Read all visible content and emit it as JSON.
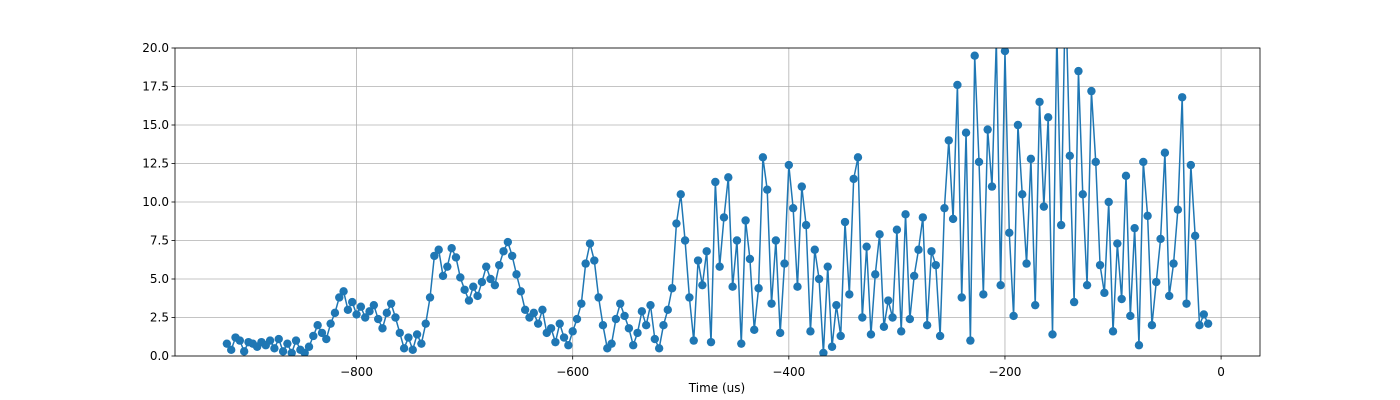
{
  "chart_data": {
    "type": "line",
    "xlabel": "Time (us)",
    "color": "#1f77b4",
    "grid": true,
    "xlim": [
      -968,
      36
    ],
    "ylim": [
      0,
      20
    ],
    "xticks": [
      {
        "value": -800,
        "label": "−800"
      },
      {
        "value": -600,
        "label": "−600"
      },
      {
        "value": -400,
        "label": "−400"
      },
      {
        "value": -200,
        "label": "−200"
      },
      0
    ],
    "yticks": [
      {
        "value": 0,
        "label": "0.0"
      },
      2.5,
      {
        "value": 5,
        "label": "5.0"
      },
      7.5,
      {
        "value": 10,
        "label": "10.0"
      },
      12.5,
      {
        "value": 15,
        "label": "15.0"
      },
      17.5,
      {
        "value": 20,
        "label": "20.0"
      }
    ],
    "x": [
      -920,
      -916,
      -912,
      -908,
      -904,
      -900,
      -896,
      -892,
      -888,
      -884,
      -880,
      -876,
      -872,
      -868,
      -864,
      -860,
      -856,
      -852,
      -848,
      -844,
      -840,
      -836,
      -832,
      -828,
      -824,
      -820,
      -816,
      -812,
      -808,
      -804,
      -800,
      -796,
      -792,
      -788,
      -784,
      -780,
      -776,
      -772,
      -768,
      -764,
      -760,
      -756,
      -752,
      -748,
      -744,
      -740,
      -736,
      -732,
      -728,
      -724,
      -720,
      -716,
      -712,
      -708,
      -704,
      -700,
      -696,
      -692,
      -688,
      -684,
      -680,
      -676,
      -672,
      -668,
      -664,
      -660,
      -656,
      -652,
      -648,
      -644,
      -640,
      -636,
      -632,
      -628,
      -624,
      -620,
      -616,
      -612,
      -608,
      -604,
      -600,
      -596,
      -592,
      -588,
      -584,
      -580,
      -576,
      -572,
      -568,
      -564,
      -560,
      -556,
      -552,
      -548,
      -544,
      -540,
      -536,
      -532,
      -528,
      -524,
      -520,
      -516,
      -512,
      -508,
      -504,
      -500,
      -496,
      -492,
      -488,
      -484,
      -480,
      -476,
      -472,
      -468,
      -464,
      -460,
      -456,
      -452,
      -448,
      -444,
      -440,
      -436,
      -432,
      -428,
      -424,
      -420,
      -416,
      -412,
      -408,
      -404,
      -400,
      -396,
      -392,
      -388,
      -384,
      -380,
      -376,
      -372,
      -368,
      -364,
      -360,
      -356,
      -352,
      -348,
      -344,
      -340,
      -336,
      -332,
      -328,
      -324,
      -320,
      -316,
      -312,
      -308,
      -304,
      -300,
      -296,
      -292,
      -288,
      -284,
      -280,
      -276,
      -272,
      -268,
      -264,
      -260,
      -256,
      -252,
      -248,
      -244,
      -240,
      -236,
      -232,
      -228,
      -224,
      -220,
      -216,
      -212,
      -208,
      -204,
      -200,
      -196,
      -192,
      -188,
      -184,
      -180,
      -176,
      -172,
      -168,
      -164,
      -160,
      -156,
      -152,
      -148,
      -144,
      -140,
      -136,
      -132,
      -128,
      -124,
      -120,
      -116,
      -112,
      -108,
      -104,
      -100,
      -96,
      -92,
      -88,
      -84,
      -80,
      -76,
      -72,
      -68,
      -64,
      -60,
      -56,
      -52,
      -48,
      -44,
      -40,
      -36,
      -32,
      -28,
      -24,
      -20,
      -16,
      -12
    ],
    "values": [
      0.8,
      0.4,
      1.2,
      1.0,
      0.3,
      0.9,
      0.8,
      0.6,
      0.9,
      0.7,
      1.0,
      0.5,
      1.1,
      0.3,
      0.8,
      0.2,
      1.0,
      0.4,
      0.2,
      0.6,
      1.3,
      2.0,
      1.5,
      1.1,
      2.1,
      2.8,
      3.8,
      4.2,
      3.0,
      3.5,
      2.7,
      3.2,
      2.5,
      2.9,
      3.3,
      2.4,
      1.8,
      2.8,
      3.4,
      2.5,
      1.5,
      0.5,
      1.2,
      0.4,
      1.4,
      0.8,
      2.1,
      3.8,
      6.5,
      6.9,
      5.2,
      5.8,
      7.0,
      6.4,
      5.1,
      4.3,
      3.6,
      4.5,
      3.9,
      4.8,
      5.8,
      5.0,
      4.6,
      5.9,
      6.8,
      7.4,
      6.5,
      5.3,
      4.2,
      3.0,
      2.5,
      2.8,
      2.1,
      3.0,
      1.5,
      1.8,
      0.9,
      2.1,
      1.2,
      0.7,
      1.6,
      2.4,
      3.4,
      6.0,
      7.3,
      6.2,
      3.8,
      2.0,
      0.5,
      0.8,
      2.4,
      3.4,
      2.6,
      1.8,
      0.7,
      1.5,
      2.9,
      2.0,
      3.3,
      1.1,
      0.5,
      2.0,
      3.0,
      4.4,
      8.6,
      10.5,
      7.5,
      3.8,
      1.0,
      6.2,
      4.6,
      6.8,
      0.9,
      11.3,
      5.8,
      9.0,
      11.6,
      4.5,
      7.5,
      0.8,
      8.8,
      6.3,
      1.7,
      4.4,
      12.9,
      10.8,
      3.4,
      7.5,
      1.5,
      6.0,
      12.4,
      9.6,
      4.5,
      11.0,
      8.5,
      1.6,
      6.9,
      5.0,
      0.2,
      5.8,
      0.6,
      3.3,
      1.3,
      8.7,
      4.0,
      11.5,
      12.9,
      2.5,
      7.1,
      1.4,
      5.3,
      7.9,
      1.9,
      3.6,
      2.5,
      8.2,
      1.6,
      9.2,
      2.4,
      5.2,
      6.9,
      9.0,
      2.0,
      6.8,
      5.9,
      1.3,
      9.6,
      14.0,
      8.9,
      17.6,
      3.8,
      14.5,
      1.0,
      19.5,
      12.6,
      4.0,
      14.7,
      11.0,
      20.5,
      4.6,
      19.8,
      8.0,
      2.6,
      15.0,
      10.5,
      6.0,
      12.8,
      3.3,
      16.5,
      9.7,
      15.5,
      1.4,
      21.0,
      8.5,
      24.0,
      13.0,
      3.5,
      18.5,
      10.5,
      4.6,
      17.2,
      12.6,
      5.9,
      4.1,
      10.0,
      1.6,
      7.3,
      3.7,
      11.7,
      2.6,
      8.3,
      0.7,
      12.6,
      9.1,
      2.0,
      4.8,
      7.6,
      13.2,
      3.9,
      6.0,
      9.5,
      16.8,
      3.4,
      12.4,
      7.8,
      2.0,
      2.7,
      2.1
    ]
  }
}
